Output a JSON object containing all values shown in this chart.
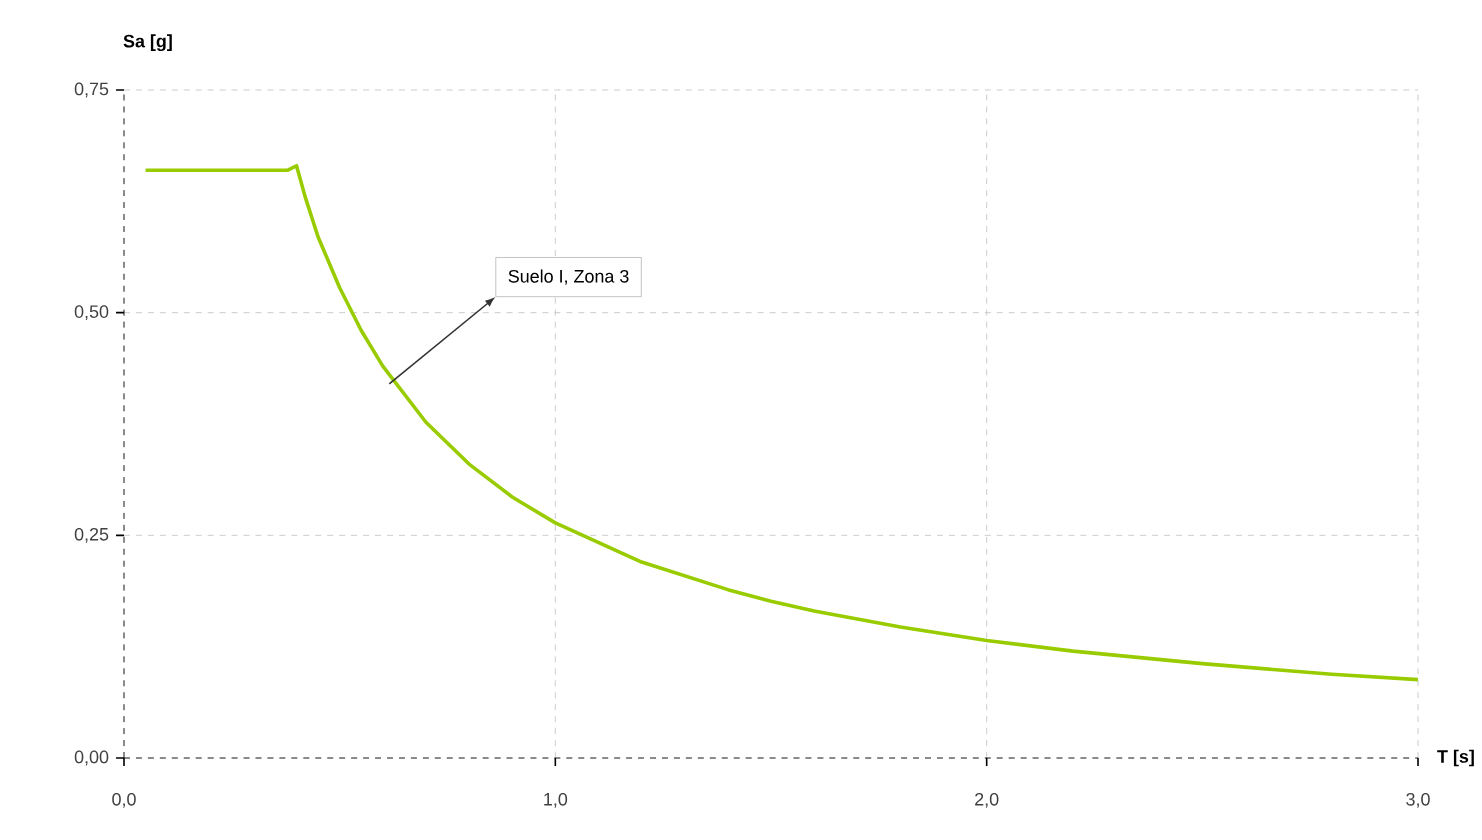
{
  "chart_data": {
    "type": "line",
    "xlabel": "T [s]",
    "ylabel": "Sa [g]",
    "x": [
      0.05,
      0.38,
      0.4,
      0.42,
      0.45,
      0.5,
      0.55,
      0.6,
      0.7,
      0.8,
      0.9,
      1.0,
      1.2,
      1.4,
      1.5,
      1.6,
      1.8,
      2.0,
      2.2,
      2.5,
      2.8,
      3.0
    ],
    "series": [
      {
        "color": "#99cc00",
        "values": [
          0.66,
          0.66,
          0.665,
          0.63,
          0.585,
          0.528,
          0.48,
          0.44,
          0.377,
          0.33,
          0.293,
          0.264,
          0.22,
          0.189,
          0.176,
          0.165,
          0.147,
          0.132,
          0.12,
          0.106,
          0.094,
          0.088
        ]
      }
    ],
    "xlim": [
      0,
      3
    ],
    "ylim": [
      0,
      0.75
    ],
    "xticks": [
      {
        "value": 0,
        "label": "0,0"
      },
      {
        "value": 1,
        "label": "1,0"
      },
      {
        "value": 2,
        "label": "2,0"
      },
      {
        "value": 3,
        "label": "3,0"
      }
    ],
    "yticks": [
      {
        "value": 0,
        "label": "0,00"
      },
      {
        "value": 0.25,
        "label": "0,25"
      },
      {
        "value": 0.5,
        "label": "0,50"
      },
      {
        "value": 0.75,
        "label": "0,75"
      }
    ],
    "grid": true,
    "annotations": [
      "Suelo I, Zona 3"
    ]
  }
}
